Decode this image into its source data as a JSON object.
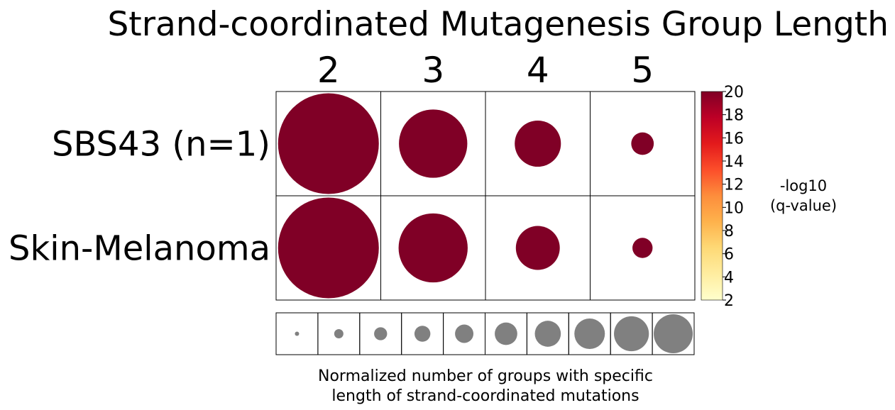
{
  "chart_data": {
    "type": "bubble-grid",
    "title": "Strand-coordinated Mutagenesis Group Length",
    "columns": [
      "2",
      "3",
      "4",
      "5"
    ],
    "rows": [
      "SBS43 (n=1)",
      "Skin-Melanoma"
    ],
    "size_values": [
      [
        1.0,
        0.46,
        0.21,
        0.05
      ],
      [
        1.0,
        0.47,
        0.19,
        0.04
      ]
    ],
    "color_values": [
      [
        20,
        20,
        20,
        20
      ],
      [
        20,
        20,
        20,
        20
      ]
    ],
    "colorbar": {
      "label_line1": "-log10",
      "label_line2": "(q-value)",
      "range": [
        2,
        20
      ],
      "ticks": [
        "2",
        "4",
        "6",
        "8",
        "10",
        "12",
        "14",
        "16",
        "18",
        "20"
      ],
      "palette": [
        "#ffffcc",
        "#ffeda0",
        "#fed976",
        "#feb24c",
        "#fd8d3c",
        "#fc4e2a",
        "#e31a1c",
        "#bd0026",
        "#800026"
      ]
    },
    "size_legend": {
      "values": [
        0.01,
        0.05,
        0.1,
        0.15,
        0.2,
        0.3,
        0.4,
        0.55,
        0.72,
        0.9
      ],
      "color": "#808080",
      "label_line1": "Normalized number of groups with specific",
      "label_line2": "length of strand-coordinated mutations"
    },
    "bubble_color": "#800026"
  }
}
